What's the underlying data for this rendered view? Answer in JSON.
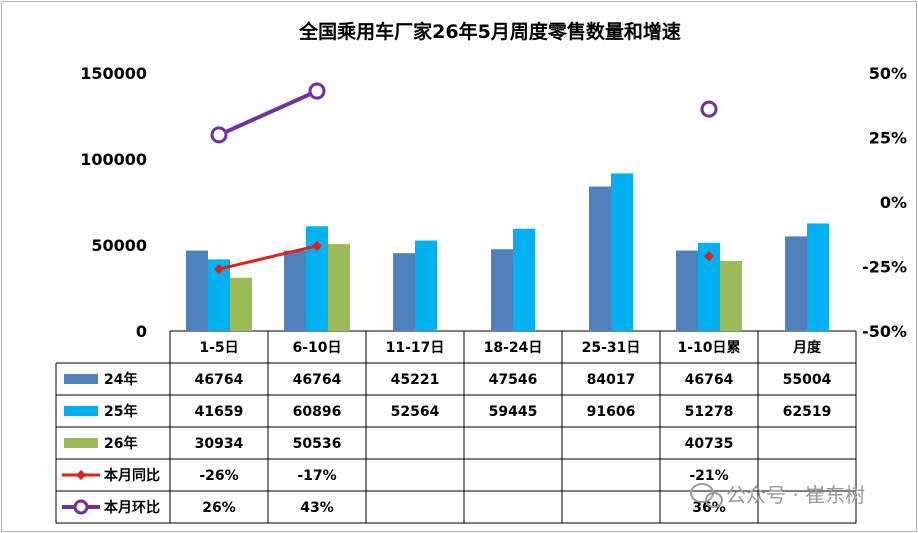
{
  "chart_data": {
    "type": "bar",
    "title": "全国乘用车厂家26年5月周度零售数量和增速",
    "categories": [
      "1-5日",
      "6-10日",
      "11-17日",
      "18-24日",
      "25-31日",
      "1-10日累",
      "月度"
    ],
    "y_left": {
      "min": 0,
      "max": 150000,
      "ticks": [
        "0",
        "50000",
        "100000",
        "150000"
      ]
    },
    "y_right": {
      "min": -0.5,
      "max": 0.5,
      "ticks": [
        "-50%",
        "-25%",
        "0%",
        "25%",
        "50%"
      ]
    },
    "bar_series": [
      {
        "name": "24年",
        "color": "#4f81bd",
        "values": [
          46764,
          46764,
          45221,
          47546,
          84017,
          46764,
          55004
        ],
        "labels": [
          "46764",
          "46764",
          "45221",
          "47546",
          "84017",
          "46764",
          "55004"
        ]
      },
      {
        "name": "25年",
        "color": "#00b0f0",
        "values": [
          41659,
          60896,
          52564,
          59445,
          91606,
          51278,
          62519
        ],
        "labels": [
          "41659",
          "60896",
          "52564",
          "59445",
          "91606",
          "51278",
          "62519"
        ]
      },
      {
        "name": "26年",
        "color": "#9bbb59",
        "values": [
          30934,
          50536,
          null,
          null,
          null,
          40735,
          null
        ],
        "labels": [
          "30934",
          "50536",
          "",
          "",
          "",
          "40735",
          ""
        ]
      }
    ],
    "line_series": [
      {
        "name": "本月同比",
        "color": "#e0201b",
        "marker": "diamond",
        "values": [
          -0.26,
          -0.17,
          null,
          null,
          null,
          -0.21,
          null
        ],
        "labels": [
          "-26%",
          "-17%",
          "",
          "",
          "",
          "-21%",
          ""
        ]
      },
      {
        "name": "本月环比",
        "color": "#7030a0",
        "marker": "circle",
        "values": [
          0.26,
          0.43,
          null,
          null,
          null,
          0.36,
          null
        ],
        "labels": [
          "26%",
          "43%",
          "",
          "",
          "",
          "36%",
          ""
        ]
      }
    ],
    "legend": "table-left"
  },
  "watermark": "公众号 · 崔东树"
}
